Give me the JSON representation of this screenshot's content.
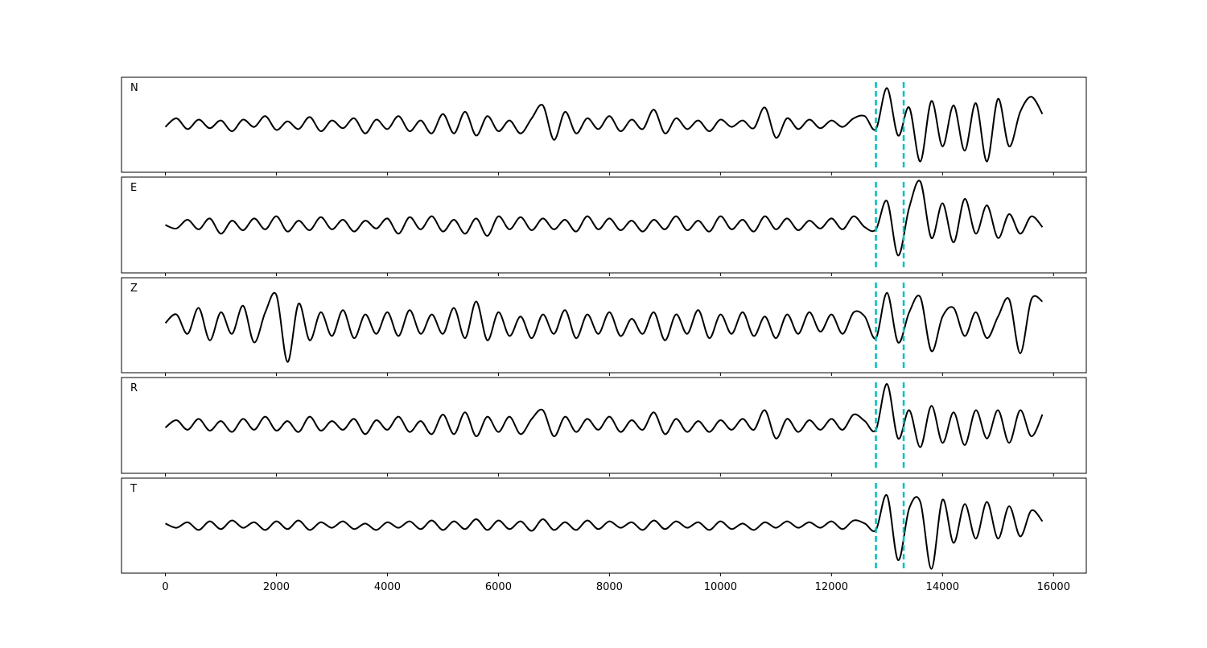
{
  "chart_data": {
    "type": "line",
    "layout": "5 stacked panels, shared x axis",
    "xlim": [
      -790,
      16590
    ],
    "ylim": [
      -1.1,
      1.1
    ],
    "x_ticks": [
      0,
      2000,
      4000,
      6000,
      8000,
      10000,
      12000,
      14000,
      16000
    ],
    "x_tick_labels": [
      "0",
      "2000",
      "4000",
      "6000",
      "8000",
      "10000",
      "12000",
      "14000",
      "16000"
    ],
    "x_start": 0,
    "x_step": 200,
    "y_axis_visible": false,
    "grid": false,
    "line_color": "#000000",
    "markers": {
      "values": [
        12800,
        13300
      ],
      "color": "#00BFBF",
      "style": "dashed"
    },
    "series": [
      {
        "name": "N",
        "values": [
          -0.05,
          0.15,
          -0.1,
          0.12,
          -0.08,
          0.1,
          -0.15,
          0.12,
          -0.05,
          0.2,
          -0.12,
          0.08,
          -0.1,
          0.18,
          -0.15,
          0.1,
          -0.08,
          0.15,
          -0.2,
          0.12,
          -0.1,
          0.2,
          -0.15,
          0.1,
          -0.2,
          0.25,
          -0.2,
          0.3,
          -0.25,
          0.2,
          -0.15,
          0.1,
          -0.2,
          0.15,
          0.45,
          -0.35,
          0.3,
          -0.2,
          0.15,
          -0.1,
          0.2,
          -0.15,
          0.12,
          -0.1,
          0.35,
          -0.2,
          0.15,
          -0.1,
          0.1,
          -0.15,
          0.12,
          -0.05,
          0.1,
          -0.08,
          0.4,
          -0.3,
          0.15,
          -0.1,
          0.12,
          -0.08,
          0.1,
          -0.05,
          0.15,
          0.2,
          -0.1,
          0.85,
          -0.25,
          0.4,
          -0.85,
          0.55,
          -0.5,
          0.45,
          -0.6,
          0.5,
          -0.85,
          0.6,
          -0.5,
          0.3,
          0.65,
          0.25
        ]
      },
      {
        "name": "E",
        "values": [
          0.0,
          -0.08,
          0.12,
          -0.1,
          0.15,
          -0.2,
          0.1,
          -0.12,
          0.15,
          -0.1,
          0.2,
          -0.15,
          0.1,
          -0.12,
          0.18,
          -0.1,
          0.12,
          -0.15,
          0.1,
          -0.08,
          0.15,
          -0.2,
          0.18,
          -0.1,
          0.2,
          -0.15,
          0.12,
          -0.2,
          0.15,
          -0.25,
          0.2,
          -0.1,
          0.18,
          -0.12,
          0.15,
          -0.1,
          0.12,
          -0.15,
          0.2,
          -0.1,
          0.15,
          -0.12,
          0.1,
          -0.15,
          0.12,
          -0.1,
          0.2,
          -0.12,
          0.1,
          -0.15,
          0.2,
          -0.1,
          0.12,
          -0.15,
          0.2,
          -0.1,
          0.15,
          -0.12,
          0.1,
          -0.08,
          0.15,
          -0.1,
          0.2,
          -0.05,
          -0.1,
          0.55,
          -0.7,
          0.4,
          1.0,
          -0.3,
          0.5,
          -0.4,
          0.6,
          -0.2,
          0.45,
          -0.3,
          0.25,
          -0.2,
          0.2,
          -0.05
        ]
      },
      {
        "name": "Z",
        "values": [
          0.05,
          0.25,
          -0.2,
          0.4,
          -0.35,
          0.3,
          -0.2,
          0.45,
          -0.4,
          0.3,
          0.7,
          -0.85,
          0.5,
          -0.35,
          0.3,
          -0.25,
          0.35,
          -0.3,
          0.25,
          -0.2,
          0.3,
          -0.25,
          0.35,
          -0.2,
          0.25,
          -0.2,
          0.4,
          -0.3,
          0.55,
          -0.35,
          0.3,
          -0.25,
          0.2,
          -0.3,
          0.25,
          -0.2,
          0.35,
          -0.3,
          0.25,
          -0.2,
          0.3,
          -0.25,
          0.15,
          -0.2,
          0.3,
          -0.35,
          0.25,
          -0.2,
          0.35,
          -0.3,
          0.25,
          -0.2,
          0.3,
          -0.25,
          0.2,
          -0.3,
          0.25,
          -0.2,
          0.3,
          -0.15,
          0.25,
          -0.2,
          0.3,
          0.2,
          -0.3,
          0.75,
          -0.4,
          0.3,
          0.65,
          -0.6,
          0.2,
          0.4,
          -0.25,
          0.3,
          -0.3,
          0.2,
          0.6,
          -0.65,
          0.6,
          0.55
        ]
      },
      {
        "name": "R",
        "values": [
          -0.05,
          0.12,
          -0.1,
          0.15,
          -0.12,
          0.1,
          -0.15,
          0.15,
          -0.1,
          0.2,
          -0.12,
          0.1,
          -0.15,
          0.2,
          -0.12,
          0.1,
          -0.1,
          0.15,
          -0.2,
          0.12,
          -0.1,
          0.2,
          -0.15,
          0.1,
          -0.2,
          0.25,
          -0.2,
          0.3,
          -0.25,
          0.2,
          -0.15,
          0.2,
          -0.2,
          0.15,
          0.35,
          -0.25,
          0.2,
          -0.15,
          0.15,
          -0.1,
          0.2,
          -0.15,
          0.12,
          -0.1,
          0.3,
          -0.2,
          0.15,
          -0.15,
          0.1,
          -0.15,
          0.12,
          -0.1,
          0.15,
          -0.1,
          0.35,
          -0.3,
          0.15,
          -0.15,
          0.12,
          -0.1,
          0.15,
          -0.1,
          0.25,
          0.1,
          -0.1,
          0.95,
          -0.3,
          0.35,
          -0.5,
          0.45,
          -0.4,
          0.3,
          -0.45,
          0.35,
          -0.3,
          0.35,
          -0.4,
          0.35,
          -0.25,
          0.25
        ]
      },
      {
        "name": "T",
        "values": [
          0.05,
          -0.05,
          0.08,
          -0.1,
          0.1,
          -0.08,
          0.12,
          -0.05,
          0.08,
          -0.1,
          0.1,
          -0.08,
          0.12,
          -0.1,
          0.08,
          -0.05,
          0.1,
          -0.08,
          0.05,
          -0.1,
          0.08,
          -0.05,
          0.1,
          -0.08,
          0.12,
          -0.1,
          0.1,
          -0.08,
          0.15,
          -0.1,
          0.12,
          -0.08,
          0.1,
          -0.12,
          0.15,
          -0.1,
          0.08,
          -0.1,
          0.12,
          -0.08,
          0.1,
          -0.05,
          0.08,
          -0.1,
          0.12,
          -0.08,
          0.1,
          -0.05,
          0.08,
          -0.1,
          0.1,
          -0.08,
          0.05,
          -0.1,
          0.08,
          -0.05,
          0.1,
          -0.05,
          0.08,
          -0.05,
          0.1,
          -0.08,
          0.12,
          0.05,
          -0.1,
          0.7,
          -0.8,
          0.4,
          0.55,
          -1.0,
          0.6,
          -0.4,
          0.5,
          -0.3,
          0.55,
          -0.3,
          0.45,
          -0.25,
          0.35,
          0.1
        ]
      }
    ]
  }
}
